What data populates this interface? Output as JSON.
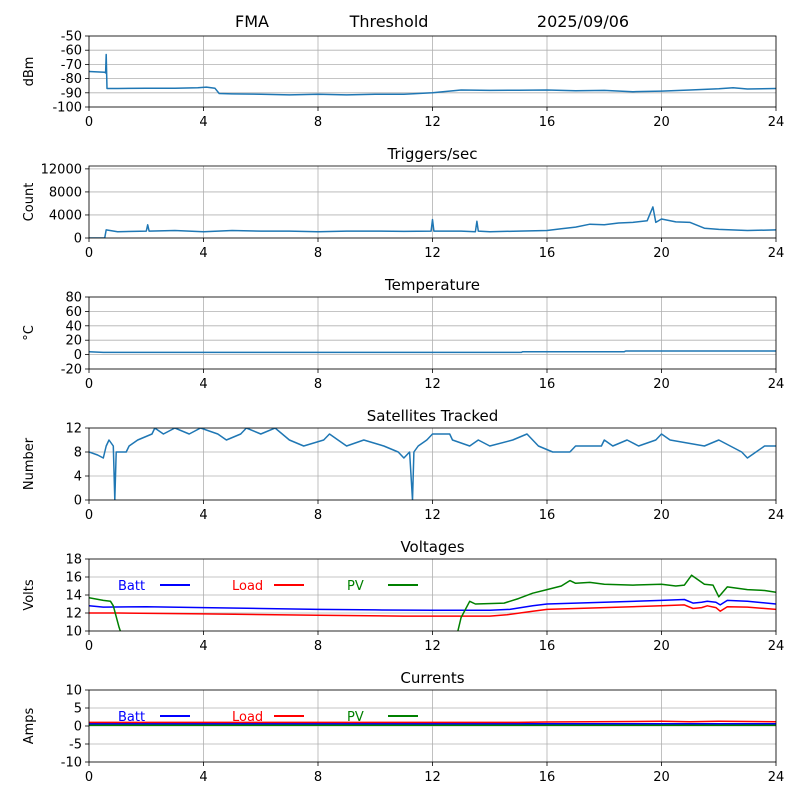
{
  "header": {
    "site": "FMA",
    "mode": "Threshold",
    "date": "2025/09/06"
  },
  "chart_data": [
    {
      "id": "signal",
      "type": "line",
      "title": "",
      "ylabel": "dBm",
      "xlabel": "",
      "xlim": [
        0,
        24
      ],
      "xticks": [
        0,
        4,
        8,
        12,
        16,
        20,
        24
      ],
      "ylim": [
        -100,
        -50
      ],
      "yticks": [
        -100,
        -90,
        -80,
        -70,
        -60,
        -50
      ],
      "grid": true,
      "series": [
        {
          "color": "#1f77b4",
          "points": [
            [
              0,
              -75
            ],
            [
              0.55,
              -75.5
            ],
            [
              0.58,
              -76
            ],
            [
              0.6,
              -63
            ],
            [
              0.63,
              -87
            ],
            [
              1,
              -87
            ],
            [
              2,
              -86.8
            ],
            [
              3,
              -86.8
            ],
            [
              3.8,
              -86.5
            ],
            [
              4.1,
              -86
            ],
            [
              4.4,
              -86.8
            ],
            [
              4.55,
              -90.5
            ],
            [
              5,
              -90.8
            ],
            [
              6,
              -91
            ],
            [
              7,
              -91.5
            ],
            [
              8,
              -91
            ],
            [
              9,
              -91.5
            ],
            [
              10,
              -91
            ],
            [
              11,
              -91
            ],
            [
              12,
              -90
            ],
            [
              13,
              -88
            ],
            [
              14,
              -88.3
            ],
            [
              15,
              -88.2
            ],
            [
              16,
              -88
            ],
            [
              17,
              -88.6
            ],
            [
              18,
              -88.3
            ],
            [
              19,
              -89.2
            ],
            [
              20,
              -88.8
            ],
            [
              21,
              -88
            ],
            [
              22,
              -87.2
            ],
            [
              22.5,
              -86.5
            ],
            [
              23,
              -87.3
            ],
            [
              24,
              -87
            ]
          ]
        }
      ]
    },
    {
      "id": "triggers",
      "type": "line",
      "title": "Triggers/sec",
      "ylabel": "Count",
      "xlabel": "",
      "xlim": [
        0,
        24
      ],
      "xticks": [
        0,
        4,
        8,
        12,
        16,
        20,
        24
      ],
      "ylim": [
        0,
        12500
      ],
      "yticks": [
        0,
        4000,
        8000,
        12000
      ],
      "grid": true,
      "series": [
        {
          "color": "#1f77b4",
          "points": [
            [
              0,
              0
            ],
            [
              0.55,
              0
            ],
            [
              0.6,
              1400
            ],
            [
              1,
              1100
            ],
            [
              2,
              1200
            ],
            [
              2.05,
              2300
            ],
            [
              2.1,
              1200
            ],
            [
              3,
              1300
            ],
            [
              4,
              1100
            ],
            [
              5,
              1300
            ],
            [
              6,
              1200
            ],
            [
              7,
              1200
            ],
            [
              8,
              1100
            ],
            [
              9,
              1200
            ],
            [
              10,
              1200
            ],
            [
              11,
              1150
            ],
            [
              11.95,
              1200
            ],
            [
              12,
              3200
            ],
            [
              12.05,
              1200
            ],
            [
              13,
              1200
            ],
            [
              13.5,
              1100
            ],
            [
              13.55,
              2900
            ],
            [
              13.6,
              1200
            ],
            [
              14,
              1100
            ],
            [
              15,
              1200
            ],
            [
              16,
              1300
            ],
            [
              16.5,
              1600
            ],
            [
              17,
              1900
            ],
            [
              17.5,
              2400
            ],
            [
              18,
              2300
            ],
            [
              18.5,
              2600
            ],
            [
              19,
              2700
            ],
            [
              19.5,
              3000
            ],
            [
              19.7,
              5400
            ],
            [
              19.8,
              2700
            ],
            [
              20,
              3300
            ],
            [
              20.5,
              2800
            ],
            [
              21,
              2700
            ],
            [
              21.5,
              1700
            ],
            [
              22,
              1500
            ],
            [
              23,
              1300
            ],
            [
              24,
              1400
            ]
          ]
        }
      ]
    },
    {
      "id": "temperature",
      "type": "line",
      "title": "Temperature",
      "ylabel": "°C",
      "xlabel": "",
      "xlim": [
        0,
        24
      ],
      "xticks": [
        0,
        4,
        8,
        12,
        16,
        20,
        24
      ],
      "ylim": [
        -20,
        80
      ],
      "yticks": [
        -20,
        0,
        20,
        40,
        60,
        80
      ],
      "grid": true,
      "series": [
        {
          "color": "#1f77b4",
          "points": [
            [
              0,
              4
            ],
            [
              0.5,
              3
            ],
            [
              15.1,
              3
            ],
            [
              15.15,
              4
            ],
            [
              18.7,
              4
            ],
            [
              18.75,
              5
            ],
            [
              24,
              5
            ]
          ]
        }
      ]
    },
    {
      "id": "satellites",
      "type": "line",
      "title": "Satellites Tracked",
      "ylabel": "Number",
      "xlabel": "",
      "xlim": [
        0,
        24
      ],
      "xticks": [
        0,
        4,
        8,
        12,
        16,
        20,
        24
      ],
      "ylim": [
        0,
        12
      ],
      "yticks": [
        0,
        4,
        8,
        12
      ],
      "grid": true,
      "series": [
        {
          "color": "#1f77b4",
          "points": [
            [
              0,
              8
            ],
            [
              0.3,
              7.5
            ],
            [
              0.5,
              7
            ],
            [
              0.6,
              9
            ],
            [
              0.7,
              10
            ],
            [
              0.85,
              9
            ],
            [
              0.9,
              0
            ],
            [
              0.95,
              8
            ],
            [
              1.3,
              8
            ],
            [
              1.4,
              9
            ],
            [
              1.7,
              10
            ],
            [
              2.2,
              11
            ],
            [
              2.3,
              12
            ],
            [
              2.6,
              11
            ],
            [
              3,
              12
            ],
            [
              3.5,
              11
            ],
            [
              3.9,
              12
            ],
            [
              4.5,
              11
            ],
            [
              4.8,
              10
            ],
            [
              5.3,
              11
            ],
            [
              5.5,
              12
            ],
            [
              6,
              11
            ],
            [
              6.5,
              12
            ],
            [
              7,
              10
            ],
            [
              7.5,
              9
            ],
            [
              8.2,
              10
            ],
            [
              8.4,
              11
            ],
            [
              8.7,
              10
            ],
            [
              9,
              9
            ],
            [
              9.6,
              10
            ],
            [
              10.3,
              9
            ],
            [
              10.8,
              8
            ],
            [
              11,
              7
            ],
            [
              11.2,
              8
            ],
            [
              11.3,
              0
            ],
            [
              11.35,
              8
            ],
            [
              11.5,
              9
            ],
            [
              11.8,
              10
            ],
            [
              12,
              11
            ],
            [
              12.6,
              11
            ],
            [
              12.7,
              10
            ],
            [
              13.3,
              9
            ],
            [
              13.6,
              10
            ],
            [
              14,
              9
            ],
            [
              14.8,
              10
            ],
            [
              15.3,
              11
            ],
            [
              15.7,
              9
            ],
            [
              16.2,
              8
            ],
            [
              16.8,
              8
            ],
            [
              17,
              9
            ],
            [
              17.9,
              9
            ],
            [
              18,
              10
            ],
            [
              18.3,
              9
            ],
            [
              18.8,
              10
            ],
            [
              19.2,
              9
            ],
            [
              19.8,
              10
            ],
            [
              20,
              11
            ],
            [
              20.3,
              10
            ],
            [
              21.5,
              9
            ],
            [
              22,
              10
            ],
            [
              22.8,
              8
            ],
            [
              23,
              7
            ],
            [
              23.3,
              8
            ],
            [
              23.6,
              9
            ],
            [
              24,
              9
            ]
          ]
        }
      ]
    },
    {
      "id": "voltages",
      "type": "line",
      "title": "Voltages",
      "ylabel": "Volts",
      "xlabel": "",
      "xlim": [
        0,
        24
      ],
      "xticks": [
        0,
        4,
        8,
        12,
        16,
        20,
        24
      ],
      "ylim": [
        10,
        18
      ],
      "yticks": [
        10,
        12,
        14,
        16,
        18
      ],
      "grid": true,
      "legend": {
        "position": "top-left",
        "entries": [
          {
            "name": "Batt",
            "color": "#0000ff"
          },
          {
            "name": "Load",
            "color": "#ff0000"
          },
          {
            "name": "PV",
            "color": "#008000"
          }
        ]
      },
      "series": [
        {
          "name": "Batt",
          "color": "#0000ff",
          "points": [
            [
              0,
              12.8
            ],
            [
              0.5,
              12.65
            ],
            [
              2,
              12.7
            ],
            [
              4,
              12.6
            ],
            [
              6,
              12.5
            ],
            [
              8,
              12.4
            ],
            [
              10,
              12.35
            ],
            [
              12,
              12.3
            ],
            [
              14,
              12.3
            ],
            [
              14.7,
              12.4
            ],
            [
              15.5,
              12.8
            ],
            [
              16,
              13.0
            ],
            [
              18,
              13.2
            ],
            [
              20,
              13.4
            ],
            [
              20.8,
              13.5
            ],
            [
              21.1,
              13.1
            ],
            [
              21.4,
              13.2
            ],
            [
              21.6,
              13.3
            ],
            [
              21.9,
              13.2
            ],
            [
              22.05,
              12.9
            ],
            [
              22.3,
              13.4
            ],
            [
              23,
              13.3
            ],
            [
              24,
              13.0
            ]
          ]
        },
        {
          "name": "Load",
          "color": "#ff0000",
          "points": [
            [
              0,
              12.0
            ],
            [
              1,
              12.0
            ],
            [
              4,
              11.9
            ],
            [
              8,
              11.75
            ],
            [
              11,
              11.65
            ],
            [
              14,
              11.65
            ],
            [
              14.6,
              11.8
            ],
            [
              15.5,
              12.2
            ],
            [
              16,
              12.4
            ],
            [
              18,
              12.6
            ],
            [
              20,
              12.8
            ],
            [
              20.8,
              12.9
            ],
            [
              21.1,
              12.5
            ],
            [
              21.4,
              12.6
            ],
            [
              21.6,
              12.8
            ],
            [
              21.9,
              12.6
            ],
            [
              22.05,
              12.2
            ],
            [
              22.3,
              12.7
            ],
            [
              23,
              12.65
            ],
            [
              24,
              12.4
            ]
          ]
        },
        {
          "name": "PV",
          "color": "#008000",
          "points": [
            [
              0,
              13.7
            ],
            [
              0.5,
              13.4
            ],
            [
              0.75,
              13.3
            ],
            [
              0.85,
              12.8
            ],
            [
              1.05,
              10.4
            ],
            [
              1.15,
              9.5
            ],
            [
              12.85,
              9.5
            ],
            [
              13.0,
              11.5
            ],
            [
              13.3,
              13.3
            ],
            [
              13.5,
              13.0
            ],
            [
              14.5,
              13.1
            ],
            [
              15,
              13.6
            ],
            [
              15.5,
              14.2
            ],
            [
              16,
              14.6
            ],
            [
              16.5,
              15.0
            ],
            [
              16.8,
              15.6
            ],
            [
              17,
              15.3
            ],
            [
              17.5,
              15.4
            ],
            [
              18,
              15.2
            ],
            [
              19,
              15.1
            ],
            [
              20,
              15.2
            ],
            [
              20.5,
              15.0
            ],
            [
              20.8,
              15.1
            ],
            [
              21.05,
              16.2
            ],
            [
              21.5,
              15.2
            ],
            [
              21.8,
              15.1
            ],
            [
              22.0,
              13.8
            ],
            [
              22.3,
              14.9
            ],
            [
              23,
              14.6
            ],
            [
              23.6,
              14.5
            ],
            [
              24,
              14.3
            ]
          ]
        }
      ]
    },
    {
      "id": "currents",
      "type": "line",
      "title": "Currents",
      "ylabel": "Amps",
      "xlabel": "",
      "xlim": [
        0,
        24
      ],
      "xticks": [
        0,
        4,
        8,
        12,
        16,
        20,
        24
      ],
      "ylim": [
        -10,
        10
      ],
      "yticks": [
        -10,
        -5,
        0,
        5,
        10
      ],
      "grid": true,
      "legend": {
        "position": "top-left",
        "entries": [
          {
            "name": "Batt",
            "color": "#0000ff"
          },
          {
            "name": "Load",
            "color": "#ff0000"
          },
          {
            "name": "PV",
            "color": "#008000"
          }
        ]
      },
      "series": [
        {
          "name": "Batt",
          "color": "#0000ff",
          "points": [
            [
              0,
              0.6
            ],
            [
              24,
              0.6
            ]
          ]
        },
        {
          "name": "Load",
          "color": "#ff0000",
          "points": [
            [
              0,
              1.0
            ],
            [
              10,
              1.0
            ],
            [
              15,
              1.0
            ],
            [
              16,
              1.1
            ],
            [
              20,
              1.3
            ],
            [
              21,
              1.2
            ],
            [
              22,
              1.3
            ],
            [
              24,
              1.2
            ]
          ]
        },
        {
          "name": "PV",
          "color": "#008000",
          "points": [
            [
              0,
              0.2
            ],
            [
              24,
              0.2
            ]
          ]
        }
      ]
    }
  ]
}
